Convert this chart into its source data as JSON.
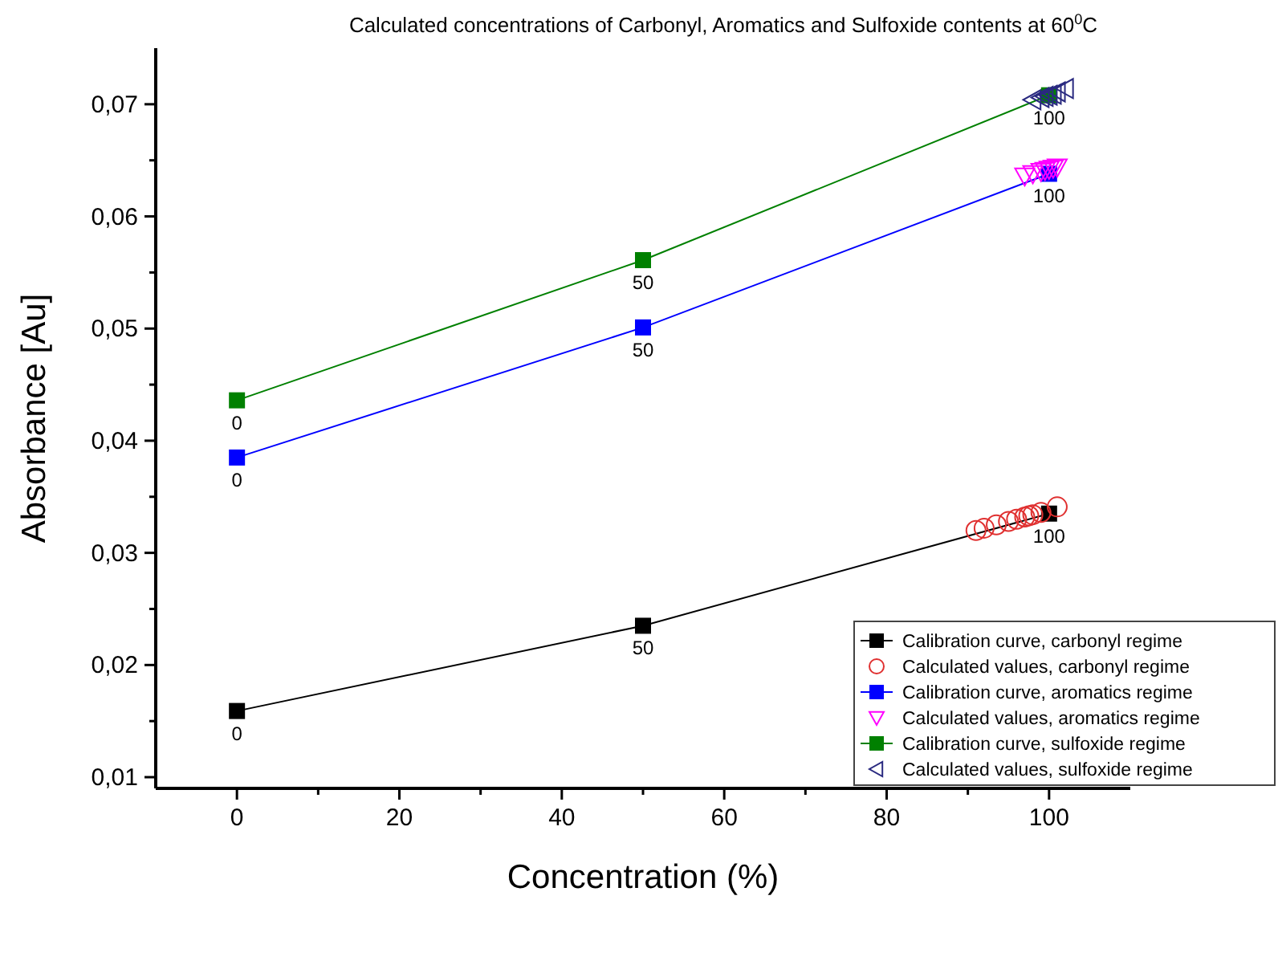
{
  "chart_data": {
    "type": "line",
    "title": "Calculated concentrations of Carbonyl, Aromatics and Sulfoxide contents at 60$^{0}$C",
    "xlabel": "Concentration (%)",
    "ylabel": "Absorbance [Au]",
    "xlim": [
      -10,
      110
    ],
    "xticks": [
      0,
      {
        "value": 10,
        "label": null
      },
      20,
      {
        "value": 30,
        "label": null
      },
      40,
      {
        "value": 50,
        "label": null
      },
      60,
      {
        "value": 70,
        "label": null
      },
      80,
      {
        "value": 90,
        "label": null
      },
      100
    ],
    "ylim": [
      0.009,
      0.075
    ],
    "yticks": [
      {
        "value": 0.01,
        "label": "0,01"
      },
      {
        "value": 0.015,
        "label": null
      },
      {
        "value": 0.02,
        "label": "0,02"
      },
      {
        "value": 0.025,
        "label": null
      },
      {
        "value": 0.03,
        "label": "0,03"
      },
      {
        "value": 0.035,
        "label": null
      },
      {
        "value": 0.04,
        "label": "0,04"
      },
      {
        "value": 0.045,
        "label": null
      },
      {
        "value": 0.05,
        "label": "0,05"
      },
      {
        "value": 0.055,
        "label": null
      },
      {
        "value": 0.06,
        "label": "0,06"
      },
      {
        "value": 0.065,
        "label": null
      },
      {
        "value": 0.07,
        "label": "0,07"
      }
    ],
    "grid": false,
    "legend": "bottom right",
    "annotations": [
      {
        "text": "0",
        "x": 0,
        "y": 0.0159
      },
      {
        "text": "50",
        "x": 50,
        "y": 0.0235
      },
      {
        "text": "100",
        "x": 100,
        "y": 0.0335
      },
      {
        "text": "0",
        "x": 0,
        "y": 0.0385
      },
      {
        "text": "50",
        "x": 50,
        "y": 0.0501
      },
      {
        "text": "100",
        "x": 100,
        "y": 0.0638
      },
      {
        "text": "0",
        "x": 0,
        "y": 0.0436
      },
      {
        "text": "50",
        "x": 50,
        "y": 0.0561
      },
      {
        "text": "100",
        "x": 100,
        "y": 0.0708
      }
    ],
    "series": [
      {
        "name": "Calibration curve, carbonyl regime",
        "marker": "square",
        "color": "#000000",
        "x": [
          0,
          50,
          100
        ],
        "values": [
          0.0159,
          0.0235,
          0.0335
        ]
      },
      {
        "name": "Calculated values, carbonyl regime",
        "type": "scatter",
        "marker": "circle",
        "color": "#e03030",
        "x": [
          91,
          92,
          93.5,
          95,
          96,
          97,
          97.5,
          98,
          99,
          101
        ],
        "values": [
          0.032,
          0.0322,
          0.0325,
          0.0328,
          0.033,
          0.0332,
          0.0333,
          0.0334,
          0.0336,
          0.0341
        ]
      },
      {
        "name": "Calibration curve, aromatics regime",
        "marker": "square",
        "color": "#0000ff",
        "x": [
          0,
          50,
          100
        ],
        "values": [
          0.0385,
          0.0501,
          0.0638
        ]
      },
      {
        "name": "Calculated values, aromatics regime",
        "type": "scatter",
        "marker": "triangle-down",
        "color": "#ff00ff",
        "x": [
          97,
          98,
          99,
          99.5,
          100,
          100.5,
          101
        ],
        "values": [
          0.0636,
          0.0638,
          0.064,
          0.0641,
          0.0642,
          0.0643,
          0.0644
        ]
      },
      {
        "name": "Calibration curve, sulfoxide regime",
        "marker": "square",
        "color": "#008000",
        "x": [
          0,
          50,
          100
        ],
        "values": [
          0.0436,
          0.0561,
          0.0708
        ]
      },
      {
        "name": "Calculated values, sulfoxide regime",
        "type": "scatter",
        "marker": "triangle-left",
        "color": "#2a2a80",
        "x": [
          98,
          99,
          99.5,
          100,
          100.5,
          101,
          102
        ],
        "values": [
          0.0704,
          0.0706,
          0.0707,
          0.0708,
          0.0709,
          0.0711,
          0.0714
        ]
      }
    ]
  }
}
